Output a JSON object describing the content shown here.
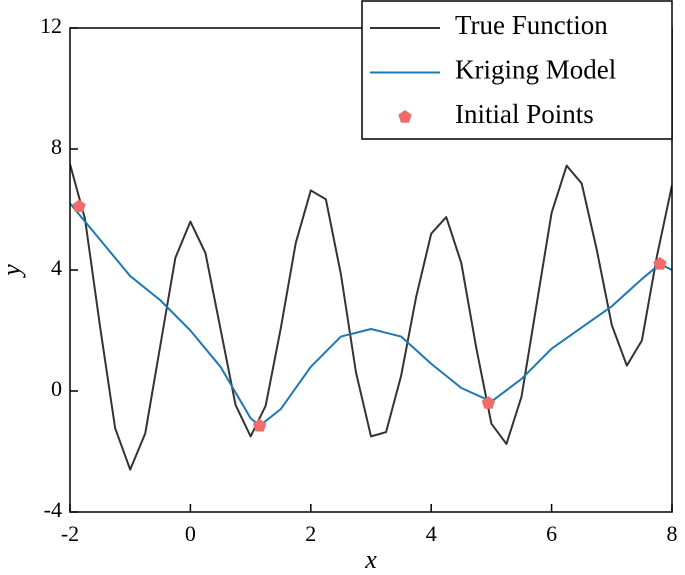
{
  "chart_data": {
    "type": "line",
    "xlabel": "x",
    "ylabel": "y",
    "xlim": [
      -2,
      8
    ],
    "ylim": [
      -4,
      12
    ],
    "xticks": [
      -2,
      0,
      2,
      4,
      6,
      8
    ],
    "yticks": [
      -4,
      0,
      4,
      8,
      12
    ],
    "legend": "upper right",
    "series": [
      {
        "name": "True Function",
        "color": "#333333",
        "style": "line",
        "x": [
          -2,
          -1.75,
          -1.5,
          -1.25,
          -1,
          -0.75,
          -0.5,
          -0.25,
          0,
          0.25,
          0.5,
          0.75,
          1,
          1.25,
          1.5,
          1.75,
          2,
          2.25,
          2.5,
          2.75,
          3,
          3.25,
          3.5,
          3.75,
          4,
          4.25,
          4.5,
          4.75,
          5,
          5.25,
          5.5,
          5.75,
          6,
          6.25,
          6.5,
          6.75,
          7,
          7.25,
          7.5,
          7.75,
          8
        ],
        "values": [
          7.5,
          5.68,
          2.12,
          -1.23,
          -2.6,
          -1.4,
          1.5,
          4.4,
          5.6,
          4.56,
          2.05,
          -0.46,
          -1.5,
          -0.49,
          2.06,
          4.89,
          6.63,
          6.34,
          3.86,
          0.62,
          -1.5,
          -1.36,
          0.5,
          3.11,
          5.2,
          5.75,
          4.23,
          1.41,
          -1.08,
          -1.75,
          -0.19,
          2.85,
          5.89,
          7.45,
          6.86,
          4.67,
          2.18,
          0.84,
          1.67,
          4.46,
          6.8
        ]
      },
      {
        "name": "Kriging Model",
        "color": "#1f77b4",
        "style": "line",
        "x": [
          -2,
          -1.5,
          -1,
          -0.5,
          0,
          0.5,
          1,
          1.15,
          1.5,
          2,
          2.5,
          3,
          3.5,
          4,
          4.5,
          5,
          5.5,
          6,
          6.5,
          7,
          7.5,
          7.8,
          8
        ],
        "values": [
          6.2,
          5.0,
          3.8,
          3.0,
          2.0,
          0.8,
          -0.9,
          -1.15,
          -0.6,
          0.8,
          1.8,
          2.05,
          1.8,
          0.9,
          0.1,
          -0.35,
          0.4,
          1.4,
          2.1,
          2.8,
          3.7,
          4.2,
          4.0
        ]
      },
      {
        "name": "Initial Points",
        "color": "#f26b6b",
        "style": "marker",
        "x": [
          -1.85,
          1.15,
          4.95,
          7.8
        ],
        "values": [
          6.1,
          -1.15,
          -0.4,
          4.2
        ]
      }
    ]
  }
}
